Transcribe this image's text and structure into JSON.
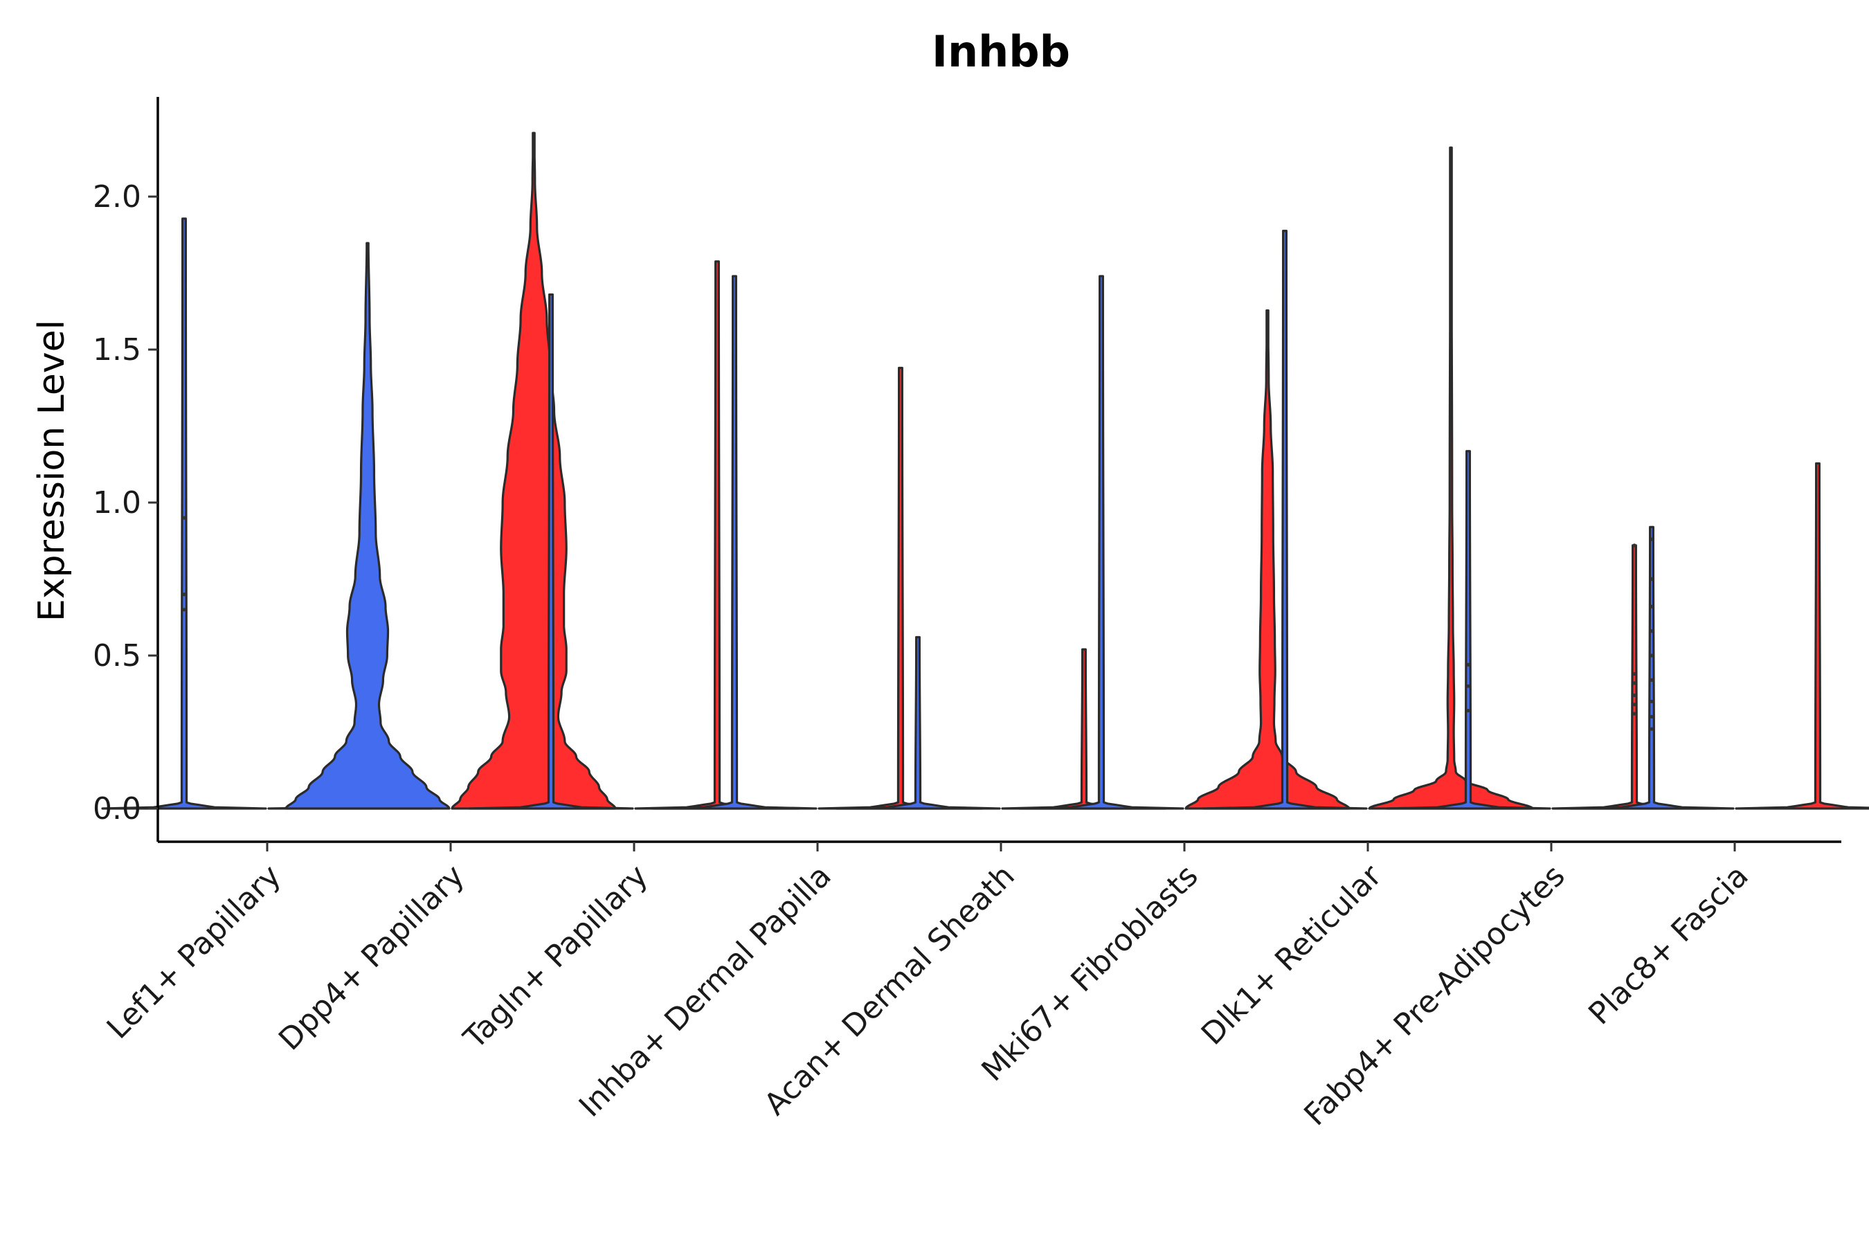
{
  "chart_data": {
    "type": "violin",
    "title": "Inhbb",
    "xlabel": "",
    "ylabel": "Expression Level",
    "ylim": [
      -0.11,
      2.32
    ],
    "yticks": [
      0.0,
      0.5,
      1.0,
      1.5,
      2.0
    ],
    "ytick_labels": [
      "0.0",
      "0.5",
      "1.0",
      "1.5",
      "2.0"
    ],
    "grid": false,
    "legend": "none",
    "colors": {
      "group_a": "#436DEE",
      "group_b": "#FF2D2D",
      "outline": "#2b2b2b"
    },
    "categories": [
      "Lef1+ Papillary",
      "Dpp4+ Papillary",
      "Tagln+ Papillary",
      "Inhba+ Dermal Papilla",
      "Acan+ Dermal Sheath",
      "Mki67+ Fibroblasts",
      "Dlk1+ Reticular",
      "Fabp4+ Pre-Adipocytes",
      "Plac8+ Fascia"
    ],
    "violins": [
      {
        "category": "Lef1+ Papillary",
        "side": "left",
        "max": 1.93,
        "profile": [
          [
            0,
            1.0
          ],
          [
            0.005,
            0.3
          ],
          [
            0.02,
            0.03
          ],
          [
            1.93,
            0.02
          ]
        ],
        "points": [
          0.65,
          0.7,
          0.95
        ]
      },
      {
        "category": "Lef1+ Papillary",
        "side": "right",
        "max": 0.0,
        "profile": [
          [
            0,
            1.0
          ]
        ],
        "points": []
      },
      {
        "category": "Dpp4+ Papillary",
        "side": "left",
        "max": 1.85,
        "profile": [
          [
            0,
            1.0
          ],
          [
            0.03,
            0.88
          ],
          [
            0.07,
            0.72
          ],
          [
            0.12,
            0.55
          ],
          [
            0.17,
            0.4
          ],
          [
            0.22,
            0.26
          ],
          [
            0.28,
            0.16
          ],
          [
            0.34,
            0.14
          ],
          [
            0.42,
            0.19
          ],
          [
            0.5,
            0.24
          ],
          [
            0.58,
            0.25
          ],
          [
            0.66,
            0.22
          ],
          [
            0.76,
            0.15
          ],
          [
            0.9,
            0.1
          ],
          [
            1.1,
            0.08
          ],
          [
            1.3,
            0.06
          ],
          [
            1.45,
            0.04
          ],
          [
            1.6,
            0.025
          ],
          [
            1.85,
            0.01
          ]
        ],
        "points": []
      },
      {
        "category": "Dpp4+ Papillary",
        "side": "right",
        "max": 2.21,
        "profile": [
          [
            0,
            1.0
          ],
          [
            0.03,
            0.9
          ],
          [
            0.07,
            0.8
          ],
          [
            0.12,
            0.68
          ],
          [
            0.17,
            0.52
          ],
          [
            0.22,
            0.38
          ],
          [
            0.3,
            0.3
          ],
          [
            0.38,
            0.34
          ],
          [
            0.45,
            0.4
          ],
          [
            0.52,
            0.4
          ],
          [
            0.6,
            0.37
          ],
          [
            0.7,
            0.37
          ],
          [
            0.85,
            0.4
          ],
          [
            1.0,
            0.38
          ],
          [
            1.15,
            0.32
          ],
          [
            1.3,
            0.25
          ],
          [
            1.45,
            0.2
          ],
          [
            1.6,
            0.16
          ],
          [
            1.75,
            0.1
          ],
          [
            1.9,
            0.04
          ],
          [
            2.05,
            0.015
          ],
          [
            2.21,
            0.005
          ]
        ],
        "points": []
      },
      {
        "category": "Tagln+ Papillary",
        "side": "left",
        "max": 1.68,
        "profile": [
          [
            0,
            1.0
          ],
          [
            0.005,
            0.3
          ],
          [
            0.02,
            0.03
          ],
          [
            1.68,
            0.02
          ]
        ],
        "points": []
      },
      {
        "category": "Tagln+ Papillary",
        "side": "right",
        "max": 1.79,
        "profile": [
          [
            0,
            1.0
          ],
          [
            0.005,
            0.3
          ],
          [
            0.02,
            0.03
          ],
          [
            1.79,
            0.02
          ]
        ],
        "points": []
      },
      {
        "category": "Inhba+ Dermal Papilla",
        "side": "left",
        "max": 1.74,
        "profile": [
          [
            0,
            1.0
          ],
          [
            0.005,
            0.3
          ],
          [
            0.02,
            0.03
          ],
          [
            1.74,
            0.02
          ]
        ],
        "points": []
      },
      {
        "category": "Inhba+ Dermal Papilla",
        "side": "right",
        "max": 1.44,
        "profile": [
          [
            0,
            1.0
          ],
          [
            0.005,
            0.3
          ],
          [
            0.02,
            0.03
          ],
          [
            1.44,
            0.02
          ]
        ],
        "points": []
      },
      {
        "category": "Acan+ Dermal Sheath",
        "side": "left",
        "max": 0.56,
        "profile": [
          [
            0,
            1.0
          ],
          [
            0.005,
            0.3
          ],
          [
            0.02,
            0.03
          ],
          [
            0.56,
            0.02
          ]
        ],
        "points": []
      },
      {
        "category": "Acan+ Dermal Sheath",
        "side": "right",
        "max": 0.52,
        "profile": [
          [
            0,
            1.0
          ],
          [
            0.005,
            0.3
          ],
          [
            0.02,
            0.03
          ],
          [
            0.52,
            0.02
          ]
        ],
        "points": []
      },
      {
        "category": "Mki67+ Fibroblasts",
        "side": "left",
        "max": 1.74,
        "profile": [
          [
            0,
            1.0
          ],
          [
            0.005,
            0.3
          ],
          [
            0.02,
            0.03
          ],
          [
            1.74,
            0.02
          ]
        ],
        "points": []
      },
      {
        "category": "Mki67+ Fibroblasts",
        "side": "right",
        "max": 1.63,
        "profile": [
          [
            0,
            1.0
          ],
          [
            0.03,
            0.85
          ],
          [
            0.07,
            0.6
          ],
          [
            0.12,
            0.35
          ],
          [
            0.17,
            0.18
          ],
          [
            0.22,
            0.1
          ],
          [
            0.28,
            0.08
          ],
          [
            0.35,
            0.085
          ],
          [
            0.45,
            0.095
          ],
          [
            0.55,
            0.09
          ],
          [
            0.7,
            0.08
          ],
          [
            0.9,
            0.07
          ],
          [
            1.1,
            0.065
          ],
          [
            1.25,
            0.04
          ],
          [
            1.4,
            0.015
          ],
          [
            1.63,
            0.005
          ]
        ],
        "points": []
      },
      {
        "category": "Dlk1+ Reticular",
        "side": "left",
        "max": 1.89,
        "profile": [
          [
            0,
            1.0
          ],
          [
            0.005,
            0.3
          ],
          [
            0.02,
            0.03
          ],
          [
            1.89,
            0.02
          ]
        ],
        "points": []
      },
      {
        "category": "Dlk1+ Reticular",
        "side": "right",
        "max": 2.16,
        "profile": [
          [
            0,
            1.0
          ],
          [
            0.03,
            0.7
          ],
          [
            0.06,
            0.45
          ],
          [
            0.09,
            0.18
          ],
          [
            0.12,
            0.06
          ],
          [
            0.16,
            0.04
          ],
          [
            0.25,
            0.035
          ],
          [
            0.35,
            0.04
          ],
          [
            0.45,
            0.035
          ],
          [
            0.6,
            0.025
          ],
          [
            0.8,
            0.02
          ],
          [
            1.0,
            0.015
          ],
          [
            2.16,
            0.005
          ]
        ],
        "points": []
      },
      {
        "category": "Fabp4+ Pre-Adipocytes",
        "side": "left",
        "max": 1.17,
        "profile": [
          [
            0,
            1.0
          ],
          [
            0.005,
            0.3
          ],
          [
            0.02,
            0.03
          ],
          [
            1.17,
            0.02
          ]
        ],
        "points": [
          0.32,
          0.4,
          0.47
        ]
      },
      {
        "category": "Fabp4+ Pre-Adipocytes",
        "side": "right",
        "max": 0.86,
        "profile": [
          [
            0,
            1.0
          ],
          [
            0.005,
            0.3
          ],
          [
            0.02,
            0.03
          ],
          [
            0.86,
            0.02
          ]
        ],
        "points": [
          0.31,
          0.34,
          0.37,
          0.41,
          0.44,
          0.86
        ]
      },
      {
        "category": "Plac8+ Fascia",
        "side": "left",
        "max": 0.92,
        "profile": [
          [
            0,
            1.0
          ],
          [
            0.005,
            0.3
          ],
          [
            0.02,
            0.03
          ],
          [
            0.92,
            0.02
          ]
        ],
        "points": [
          0.26,
          0.3,
          0.35,
          0.42,
          0.5,
          0.58,
          0.66,
          0.75,
          0.88
        ]
      },
      {
        "category": "Plac8+ Fascia",
        "side": "right",
        "max": 1.13,
        "profile": [
          [
            0,
            1.0
          ],
          [
            0.005,
            0.3
          ],
          [
            0.02,
            0.03
          ],
          [
            1.13,
            0.02
          ]
        ],
        "points": []
      }
    ]
  }
}
